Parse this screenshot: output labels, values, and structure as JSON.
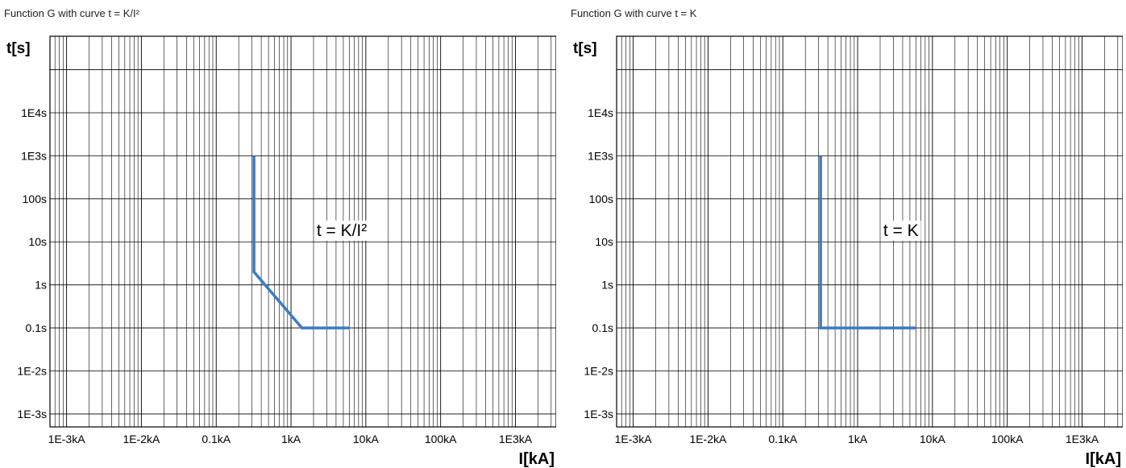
{
  "chart_data": [
    {
      "type": "line",
      "title": "Function G with curve t = K/I²",
      "xlabel": "I[kA]",
      "ylabel": "t[s]",
      "x_scale": "log",
      "y_scale": "log",
      "xlim": [
        0.0006,
        3500
      ],
      "ylim": [
        0.0005,
        600000
      ],
      "x_ticks": [
        0.001,
        0.01,
        0.1,
        1,
        10,
        100,
        1000
      ],
      "x_tick_labels": [
        "1E-3kA",
        "1E-2kA",
        "0.1kA",
        "1kA",
        "10kA",
        "100kA",
        "1E3kA"
      ],
      "y_ticks": [
        0.001,
        0.01,
        0.1,
        1,
        10,
        100,
        1000,
        10000
      ],
      "y_tick_labels": [
        "1E-3s",
        "1E-2s",
        "0.1s",
        "1s",
        "10s",
        "100s",
        "1E3s",
        "1E4s"
      ],
      "grid": true,
      "annotation": {
        "text": "t = K/I²",
        "x": 2.2,
        "y": 15
      },
      "series": [
        {
          "color": "#3a7cc4",
          "x": [
            0.32,
            0.32,
            1.4,
            6.0
          ],
          "y": [
            1000,
            2,
            0.1,
            0.1
          ]
        }
      ]
    },
    {
      "type": "line",
      "title": "Function G with curve t = K",
      "xlabel": "I[kA]",
      "ylabel": "t[s]",
      "x_scale": "log",
      "y_scale": "log",
      "xlim": [
        0.0006,
        3500
      ],
      "ylim": [
        0.0005,
        600000
      ],
      "x_ticks": [
        0.001,
        0.01,
        0.1,
        1,
        10,
        100,
        1000
      ],
      "x_tick_labels": [
        "1E-3kA",
        "1E-2kA",
        "0.1kA",
        "1kA",
        "10kA",
        "100kA",
        "1E3kA"
      ],
      "y_ticks": [
        0.001,
        0.01,
        0.1,
        1,
        10,
        100,
        1000,
        10000
      ],
      "y_tick_labels": [
        "1E-3s",
        "1E-2s",
        "0.1s",
        "1s",
        "10s",
        "100s",
        "1E3s",
        "1E4s"
      ],
      "grid": true,
      "annotation": {
        "text": "t = K",
        "x": 2.2,
        "y": 15
      },
      "series": [
        {
          "color": "#3a7cc4",
          "x": [
            0.32,
            0.32,
            6.0
          ],
          "y": [
            1000,
            0.1,
            0.1
          ]
        }
      ]
    }
  ]
}
